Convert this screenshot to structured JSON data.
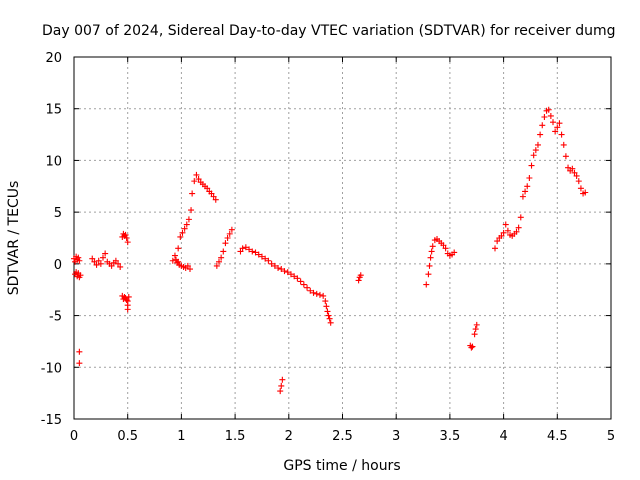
{
  "chart_data": {
    "type": "scatter",
    "title": "Day 007 of 2024, Sidereal Day-to-day VTEC variation (SDTVAR) for receiver dumg",
    "xlabel": "GPS time / hours",
    "ylabel": "SDTVAR / TECUs",
    "xlim": [
      0,
      5
    ],
    "ylim": [
      -15,
      20
    ],
    "x_ticks": [
      "0",
      "0.5",
      "1",
      "1.5",
      "2",
      "2.5",
      "3",
      "3.5",
      "4",
      "4.5",
      "5"
    ],
    "y_ticks": [
      "-15",
      "-10",
      "-5",
      "0",
      "5",
      "10",
      "15",
      "20"
    ],
    "grid": true,
    "marker": "+",
    "color": "#ff0000",
    "series": [
      {
        "name": "SDTVAR",
        "x": [
          0.0,
          0.01,
          0.02,
          0.03,
          0.04,
          0.05,
          0.01,
          0.02,
          0.03,
          0.04,
          0.05,
          0.06,
          0.05,
          0.05,
          0.17,
          0.19,
          0.21,
          0.23,
          0.25,
          0.27,
          0.29,
          0.31,
          0.33,
          0.35,
          0.37,
          0.39,
          0.41,
          0.43,
          0.45,
          0.46,
          0.47,
          0.48,
          0.49,
          0.5,
          0.45,
          0.46,
          0.47,
          0.48,
          0.49,
          0.5,
          0.51,
          0.5,
          0.5,
          0.92,
          0.94,
          0.95,
          0.96,
          0.97,
          0.98,
          1.0,
          1.02,
          1.04,
          1.06,
          1.08,
          0.97,
          0.99,
          1.01,
          1.03,
          1.05,
          1.07,
          1.09,
          1.1,
          1.12,
          1.14,
          1.16,
          1.18,
          1.2,
          1.22,
          1.24,
          1.26,
          1.28,
          1.3,
          1.32,
          1.33,
          1.35,
          1.37,
          1.39,
          1.41,
          1.43,
          1.45,
          1.47,
          1.55,
          1.57,
          1.6,
          1.63,
          1.66,
          1.69,
          1.72,
          1.75,
          1.78,
          1.81,
          1.84,
          1.87,
          1.9,
          1.93,
          1.96,
          1.99,
          2.02,
          2.05,
          2.08,
          2.11,
          2.14,
          2.17,
          2.2,
          2.23,
          2.26,
          2.29,
          2.32,
          2.34,
          2.35,
          2.36,
          2.37,
          2.38,
          2.39,
          1.92,
          1.93,
          1.94,
          2.65,
          2.66,
          2.67,
          3.28,
          3.3,
          3.31,
          3.32,
          3.33,
          3.34,
          3.36,
          3.38,
          3.4,
          3.42,
          3.44,
          3.46,
          3.48,
          3.5,
          3.52,
          3.54,
          3.69,
          3.7,
          3.71,
          3.73,
          3.74,
          3.75,
          3.92,
          3.94,
          3.96,
          3.98,
          4.0,
          4.02,
          4.04,
          4.06,
          4.08,
          4.1,
          4.12,
          4.14,
          4.16,
          4.18,
          4.2,
          4.22,
          4.24,
          4.26,
          4.28,
          4.3,
          4.32,
          4.34,
          4.36,
          4.38,
          4.4,
          4.42,
          4.44,
          4.46,
          4.48,
          4.5,
          4.52,
          4.54,
          4.56,
          4.58,
          4.6,
          4.62,
          4.64,
          4.66,
          4.68,
          4.7,
          4.72,
          4.74,
          4.76
        ],
        "y": [
          0.5,
          0.2,
          0.7,
          0.4,
          0.6,
          0.3,
          -1.0,
          -0.8,
          -1.2,
          -0.9,
          -1.3,
          -1.1,
          -8.5,
          -9.6,
          0.5,
          0.2,
          -0.1,
          0.3,
          0.0,
          0.6,
          1.0,
          0.2,
          0.0,
          -0.2,
          0.1,
          0.3,
          0.0,
          -0.3,
          2.6,
          2.9,
          2.7,
          2.8,
          2.5,
          2.1,
          -3.1,
          -3.4,
          -3.2,
          -3.3,
          -3.5,
          -3.6,
          -3.2,
          -4.0,
          -4.4,
          0.3,
          0.8,
          0.4,
          0.1,
          0.2,
          -0.1,
          -0.2,
          -0.3,
          -0.4,
          -0.2,
          -0.5,
          1.5,
          2.6,
          3.0,
          3.4,
          3.8,
          4.3,
          5.2,
          6.8,
          8.0,
          8.6,
          8.2,
          7.9,
          7.7,
          7.5,
          7.3,
          7.0,
          6.8,
          6.5,
          6.2,
          -0.2,
          0.2,
          0.6,
          1.2,
          2.0,
          2.5,
          2.9,
          3.3,
          1.2,
          1.5,
          1.6,
          1.4,
          1.2,
          1.1,
          0.9,
          0.7,
          0.5,
          0.3,
          0.0,
          -0.2,
          -0.4,
          -0.5,
          -0.7,
          -0.8,
          -1.0,
          -1.2,
          -1.4,
          -1.7,
          -2.0,
          -2.3,
          -2.6,
          -2.8,
          -2.9,
          -3.0,
          -3.1,
          -3.6,
          -4.1,
          -4.6,
          -5.0,
          -5.3,
          -5.7,
          -12.3,
          -11.8,
          -11.2,
          -1.6,
          -1.3,
          -1.1,
          -2.0,
          -1.0,
          -0.2,
          0.6,
          1.2,
          1.7,
          2.3,
          2.4,
          2.2,
          2.0,
          1.8,
          1.5,
          1.0,
          0.8,
          0.9,
          1.1,
          -7.9,
          -8.1,
          -8.0,
          -6.8,
          -6.3,
          -5.9,
          1.5,
          2.2,
          2.5,
          2.7,
          3.0,
          3.8,
          3.2,
          2.8,
          2.7,
          2.9,
          3.1,
          3.5,
          4.5,
          6.5,
          7.0,
          7.5,
          8.3,
          9.5,
          10.5,
          11.0,
          11.5,
          12.5,
          13.4,
          14.2,
          14.8,
          14.9,
          14.3,
          13.7,
          12.8,
          13.2,
          13.6,
          12.5,
          11.5,
          10.4,
          9.3,
          9.0,
          9.2,
          8.8,
          8.5,
          8.0,
          7.3,
          6.8,
          6.9
        ]
      }
    ]
  }
}
